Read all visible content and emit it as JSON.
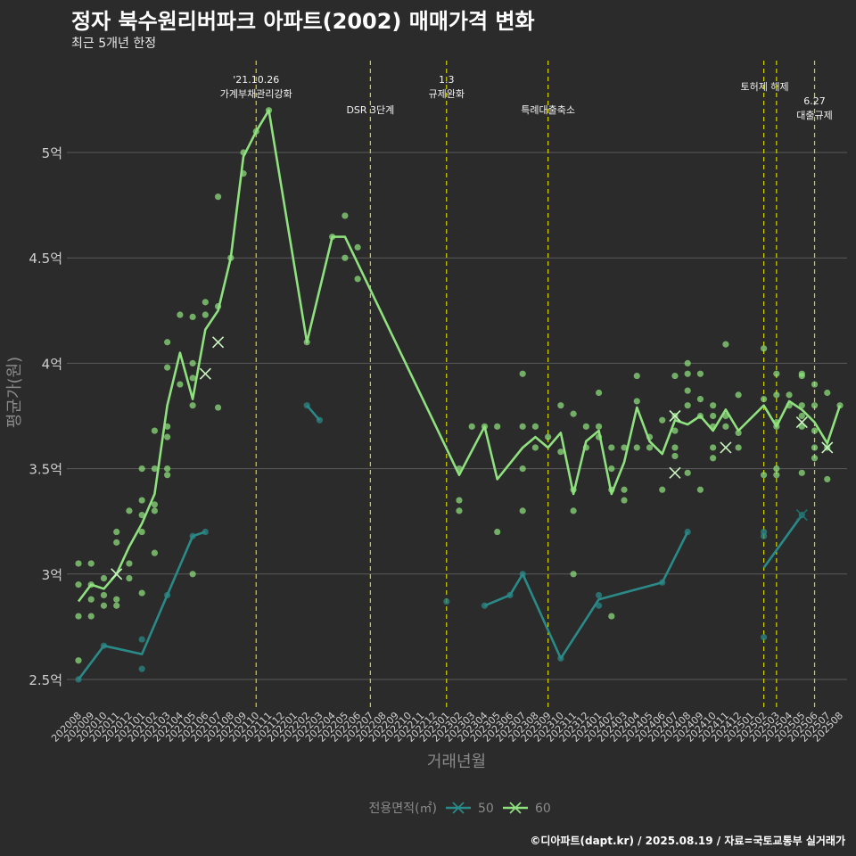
{
  "header": {
    "title": "정자 북수원리버파크 아파트(2002) 매매가격 변화",
    "subtitle": "최근 5개년 한정"
  },
  "caption": "©디아파트(dapt.kr) / 2025.08.19 / 자료=국토교통부 실거래가",
  "colors": {
    "background": "#2b2b2b",
    "grid": "#5a5a5a",
    "axis_text": "#cfcfcf",
    "axis_title": "#8a8a8a",
    "vline": "#d4d400",
    "series_50": "#2a8a88",
    "series_60": "#8fe07e"
  },
  "chart_data": {
    "type": "line",
    "title": "정자 북수원리버파크 아파트(2002) 매매가격 변화",
    "subtitle": "최근 5개년 한정",
    "xlabel": "거래년월",
    "ylabel": "평균가(원)",
    "ylim": [
      2.4,
      5.6
    ],
    "yticks": [
      2.5,
      3,
      3.5,
      4,
      4.5,
      5
    ],
    "ytick_labels": [
      "2.5억",
      "3억",
      "3.5억",
      "4억",
      "4.5억",
      "5억"
    ],
    "grid": true,
    "legend": {
      "position": "bottom",
      "title": "전용면적(㎡)",
      "labels": [
        "50",
        "60"
      ]
    },
    "x_categories": [
      "202008",
      "202009",
      "202010",
      "202011",
      "202012",
      "202101",
      "202102",
      "202103",
      "202104",
      "202105",
      "202106",
      "202107",
      "202108",
      "202109",
      "202110",
      "202111",
      "202112",
      "202201",
      "202202",
      "202203",
      "202204",
      "202205",
      "202206",
      "202207",
      "202208",
      "202209",
      "202210",
      "202211",
      "202212",
      "202301",
      "202302",
      "202303",
      "202304",
      "202305",
      "202306",
      "202307",
      "202308",
      "202309",
      "202310",
      "202311",
      "202312",
      "202401",
      "202402",
      "202403",
      "202404",
      "202405",
      "202406",
      "202407",
      "202408",
      "202409",
      "202410",
      "202411",
      "202412",
      "202501",
      "202502",
      "202503",
      "202504",
      "202505",
      "202506",
      "202507",
      "202508"
    ],
    "events": [
      {
        "x": "202110",
        "label": "'21.10.26\n가계부채관리강화"
      },
      {
        "x": "202207",
        "label": "DSR 3단계"
      },
      {
        "x": "202301",
        "label": "1.3\n규제완화"
      },
      {
        "x": "202309",
        "label": "특례대출축소"
      },
      {
        "x": "202502",
        "label": "토허제 해제"
      },
      {
        "x": "202503",
        "label": ""
      },
      {
        "x": "202506",
        "label": "6.27\n대출규제"
      }
    ],
    "series": [
      {
        "name": "50",
        "segments": [
          [
            [
              "202008",
              2.5
            ],
            [
              "202010",
              2.66
            ],
            [
              "202101",
              2.62
            ],
            [
              "202103",
              2.9
            ],
            [
              "202105",
              3.18
            ],
            [
              "202106",
              3.2
            ]
          ],
          [
            [
              "202202",
              3.8
            ],
            [
              "202203",
              3.73
            ]
          ],
          [
            [
              "202301",
              2.87
            ]
          ],
          [
            [
              "202304",
              2.85
            ],
            [
              "202306",
              2.9
            ],
            [
              "202307",
              3.0
            ],
            [
              "202310",
              2.6
            ],
            [
              "202401",
              2.88
            ],
            [
              "202406",
              2.96
            ],
            [
              "202408",
              3.2
            ]
          ],
          [
            [
              "202502",
              3.03
            ],
            [
              "202505",
              3.28
            ]
          ]
        ],
        "points": [
          [
            "202008",
            2.5
          ],
          [
            "202010",
            2.66
          ],
          [
            "202101",
            2.69
          ],
          [
            "202101",
            2.55
          ],
          [
            "202103",
            2.9
          ],
          [
            "202105",
            3.18
          ],
          [
            "202106",
            3.2
          ],
          [
            "202202",
            3.8
          ],
          [
            "202203",
            3.73
          ],
          [
            "202301",
            2.87
          ],
          [
            "202304",
            2.85
          ],
          [
            "202306",
            2.9
          ],
          [
            "202307",
            3.0
          ],
          [
            "202310",
            2.6
          ],
          [
            "202401",
            2.9
          ],
          [
            "202401",
            2.85
          ],
          [
            "202406",
            2.96
          ],
          [
            "202408",
            3.2
          ],
          [
            "202502",
            3.2
          ],
          [
            "202502",
            3.18
          ],
          [
            "202502",
            2.7
          ],
          [
            "202505",
            3.28
          ]
        ],
        "markers": [
          [
            "202505",
            3.28
          ]
        ]
      },
      {
        "name": "60",
        "segments": [
          [
            [
              "202008",
              2.87
            ],
            [
              "202009",
              2.95
            ],
            [
              "202010",
              2.93
            ],
            [
              "202011",
              3.0
            ],
            [
              "202012",
              3.13
            ],
            [
              "202101",
              3.24
            ],
            [
              "202102",
              3.38
            ],
            [
              "202103",
              3.8
            ],
            [
              "202104",
              4.05
            ],
            [
              "202105",
              3.83
            ],
            [
              "202106",
              4.16
            ],
            [
              "202107",
              4.25
            ],
            [
              "202108",
              4.5
            ],
            [
              "202109",
              4.98
            ],
            [
              "202110",
              5.1
            ],
            [
              "202111",
              5.2
            ],
            [
              "202202",
              4.1
            ],
            [
              "202204",
              4.6
            ],
            [
              "202205",
              4.6
            ],
            [
              "202302",
              3.47
            ],
            [
              "202304",
              3.7
            ],
            [
              "202305",
              3.45
            ],
            [
              "202307",
              3.6
            ],
            [
              "202308",
              3.65
            ],
            [
              "202309",
              3.6
            ],
            [
              "202310",
              3.67
            ],
            [
              "202311",
              3.38
            ],
            [
              "202312",
              3.63
            ],
            [
              "202401",
              3.68
            ],
            [
              "202402",
              3.38
            ],
            [
              "202403",
              3.53
            ],
            [
              "202404",
              3.79
            ],
            [
              "202405",
              3.63
            ],
            [
              "202406",
              3.57
            ],
            [
              "202407",
              3.73
            ],
            [
              "202408",
              3.71
            ],
            [
              "202409",
              3.75
            ],
            [
              "202410",
              3.68
            ],
            [
              "202411",
              3.78
            ],
            [
              "202412",
              3.68
            ],
            [
              "202502",
              3.8
            ],
            [
              "202503",
              3.7
            ],
            [
              "202504",
              3.82
            ],
            [
              "202505",
              3.78
            ],
            [
              "202506",
              3.72
            ],
            [
              "202507",
              3.62
            ],
            [
              "202508",
              3.8
            ]
          ]
        ],
        "points": [
          [
            "202008",
            3.05
          ],
          [
            "202008",
            2.95
          ],
          [
            "202008",
            2.8
          ],
          [
            "202008",
            2.59
          ],
          [
            "202009",
            3.05
          ],
          [
            "202009",
            2.95
          ],
          [
            "202009",
            2.88
          ],
          [
            "202009",
            2.8
          ],
          [
            "202010",
            2.98
          ],
          [
            "202010",
            2.9
          ],
          [
            "202010",
            2.85
          ],
          [
            "202011",
            3.2
          ],
          [
            "202011",
            3.15
          ],
          [
            "202011",
            2.88
          ],
          [
            "202011",
            2.85
          ],
          [
            "202012",
            3.3
          ],
          [
            "202012",
            3.05
          ],
          [
            "202012",
            2.98
          ],
          [
            "202101",
            3.5
          ],
          [
            "202101",
            3.35
          ],
          [
            "202101",
            3.28
          ],
          [
            "202101",
            3.2
          ],
          [
            "202101",
            2.91
          ],
          [
            "202102",
            3.5
          ],
          [
            "202102",
            3.33
          ],
          [
            "202102",
            3.3
          ],
          [
            "202102",
            3.1
          ],
          [
            "202102",
            3.68
          ],
          [
            "202103",
            4.1
          ],
          [
            "202103",
            3.98
          ],
          [
            "202103",
            3.7
          ],
          [
            "202103",
            3.65
          ],
          [
            "202103",
            3.47
          ],
          [
            "202103",
            3.5
          ],
          [
            "202104",
            4.23
          ],
          [
            "202104",
            3.9
          ],
          [
            "202105",
            4.22
          ],
          [
            "202105",
            4.0
          ],
          [
            "202105",
            3.93
          ],
          [
            "202105",
            3.8
          ],
          [
            "202105",
            3.0
          ],
          [
            "202106",
            4.29
          ],
          [
            "202106",
            4.23
          ],
          [
            "202107",
            4.79
          ],
          [
            "202107",
            4.27
          ],
          [
            "202107",
            3.79
          ],
          [
            "202108",
            4.5
          ],
          [
            "202109",
            5.0
          ],
          [
            "202109",
            4.9
          ],
          [
            "202110",
            5.1
          ],
          [
            "202111",
            5.2
          ],
          [
            "202202",
            4.1
          ],
          [
            "202204",
            4.6
          ],
          [
            "202205",
            4.7
          ],
          [
            "202205",
            4.5
          ],
          [
            "202206",
            4.55
          ],
          [
            "202206",
            4.4
          ],
          [
            "202302",
            3.5
          ],
          [
            "202302",
            3.35
          ],
          [
            "202302",
            3.3
          ],
          [
            "202303",
            3.7
          ],
          [
            "202304",
            3.7
          ],
          [
            "202305",
            3.7
          ],
          [
            "202305",
            3.2
          ],
          [
            "202307",
            3.95
          ],
          [
            "202307",
            3.7
          ],
          [
            "202307",
            3.5
          ],
          [
            "202307",
            3.3
          ],
          [
            "202308",
            3.7
          ],
          [
            "202308",
            3.6
          ],
          [
            "202309",
            3.65
          ],
          [
            "202310",
            3.8
          ],
          [
            "202310",
            3.58
          ],
          [
            "202311",
            3.76
          ],
          [
            "202311",
            3.4
          ],
          [
            "202311",
            3.3
          ],
          [
            "202311",
            3.0
          ],
          [
            "202312",
            3.7
          ],
          [
            "202312",
            3.6
          ],
          [
            "202401",
            3.86
          ],
          [
            "202401",
            3.7
          ],
          [
            "202401",
            3.65
          ],
          [
            "202402",
            3.6
          ],
          [
            "202402",
            3.4
          ],
          [
            "202402",
            3.5
          ],
          [
            "202402",
            2.8
          ],
          [
            "202403",
            3.6
          ],
          [
            "202403",
            3.4
          ],
          [
            "202403",
            3.35
          ],
          [
            "202404",
            3.94
          ],
          [
            "202404",
            3.82
          ],
          [
            "202404",
            3.6
          ],
          [
            "202405",
            3.65
          ],
          [
            "202405",
            3.6
          ],
          [
            "202406",
            3.73
          ],
          [
            "202406",
            3.4
          ],
          [
            "202407",
            3.94
          ],
          [
            "202407",
            3.75
          ],
          [
            "202407",
            3.68
          ],
          [
            "202407",
            3.6
          ],
          [
            "202407",
            3.56
          ],
          [
            "202408",
            4.0
          ],
          [
            "202408",
            3.95
          ],
          [
            "202408",
            3.87
          ],
          [
            "202408",
            3.8
          ],
          [
            "202408",
            3.48
          ],
          [
            "202409",
            3.95
          ],
          [
            "202409",
            3.83
          ],
          [
            "202409",
            3.75
          ],
          [
            "202409",
            3.4
          ],
          [
            "202410",
            3.8
          ],
          [
            "202410",
            3.75
          ],
          [
            "202410",
            3.7
          ],
          [
            "202410",
            3.6
          ],
          [
            "202410",
            3.55
          ],
          [
            "202411",
            4.09
          ],
          [
            "202411",
            3.75
          ],
          [
            "202411",
            3.7
          ],
          [
            "202412",
            3.85
          ],
          [
            "202412",
            3.67
          ],
          [
            "202412",
            3.6
          ],
          [
            "202502",
            4.07
          ],
          [
            "202502",
            3.83
          ],
          [
            "202502",
            3.47
          ],
          [
            "202503",
            3.95
          ],
          [
            "202503",
            3.85
          ],
          [
            "202503",
            3.72
          ],
          [
            "202503",
            3.7
          ],
          [
            "202503",
            3.5
          ],
          [
            "202503",
            3.47
          ],
          [
            "202504",
            3.85
          ],
          [
            "202504",
            3.8
          ],
          [
            "202505",
            3.95
          ],
          [
            "202505",
            3.94
          ],
          [
            "202505",
            3.8
          ],
          [
            "202505",
            3.75
          ],
          [
            "202505",
            3.7
          ],
          [
            "202505",
            3.48
          ],
          [
            "202506",
            3.9
          ],
          [
            "202506",
            3.8
          ],
          [
            "202506",
            3.68
          ],
          [
            "202506",
            3.6
          ],
          [
            "202506",
            3.55
          ],
          [
            "202507",
            3.86
          ],
          [
            "202507",
            3.6
          ],
          [
            "202507",
            3.45
          ],
          [
            "202508",
            3.8
          ]
        ],
        "markers": [
          [
            "202011",
            3.0
          ],
          [
            "202106",
            3.95
          ],
          [
            "202107",
            4.1
          ],
          [
            "202407",
            3.75
          ],
          [
            "202407",
            3.48
          ],
          [
            "202411",
            3.6
          ],
          [
            "202505",
            3.72
          ],
          [
            "202507",
            3.6
          ]
        ]
      }
    ]
  }
}
